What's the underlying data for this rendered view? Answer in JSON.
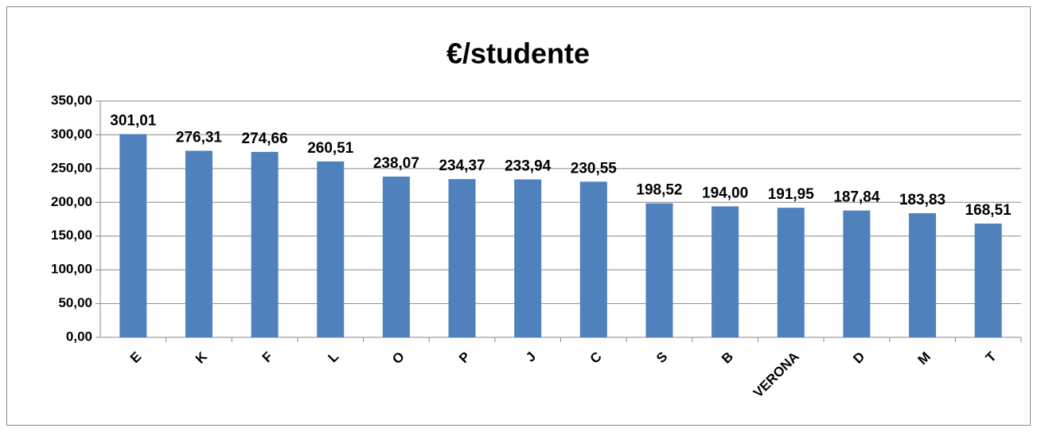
{
  "chart_data": {
    "type": "bar",
    "title": "€/studente",
    "categories": [
      "E",
      "K",
      "F",
      "L",
      "O",
      "P",
      "J",
      "C",
      "S",
      "B",
      "VERONA",
      "D",
      "M",
      "T"
    ],
    "values": [
      301.01,
      276.31,
      274.66,
      260.51,
      238.07,
      234.37,
      233.94,
      230.55,
      198.52,
      194.0,
      191.95,
      187.84,
      183.83,
      168.51
    ],
    "value_labels": [
      "301,01",
      "276,31",
      "274,66",
      "260,51",
      "238,07",
      "234,37",
      "233,94",
      "230,55",
      "198,52",
      "194,00",
      "191,95",
      "187,84",
      "183,83",
      "168,51"
    ],
    "color": "#4f81bd",
    "ylim": [
      0,
      350
    ],
    "yticks": [
      {
        "value": 0,
        "label": "0,00"
      },
      {
        "value": 50,
        "label": "50,00"
      },
      {
        "value": 100,
        "label": "100,00"
      },
      {
        "value": 150,
        "label": "150,00"
      },
      {
        "value": 200,
        "label": "200,00"
      },
      {
        "value": 250,
        "label": "250,00"
      },
      {
        "value": 300,
        "label": "300,00"
      },
      {
        "value": 350,
        "label": "350,00"
      }
    ],
    "grid": true
  }
}
